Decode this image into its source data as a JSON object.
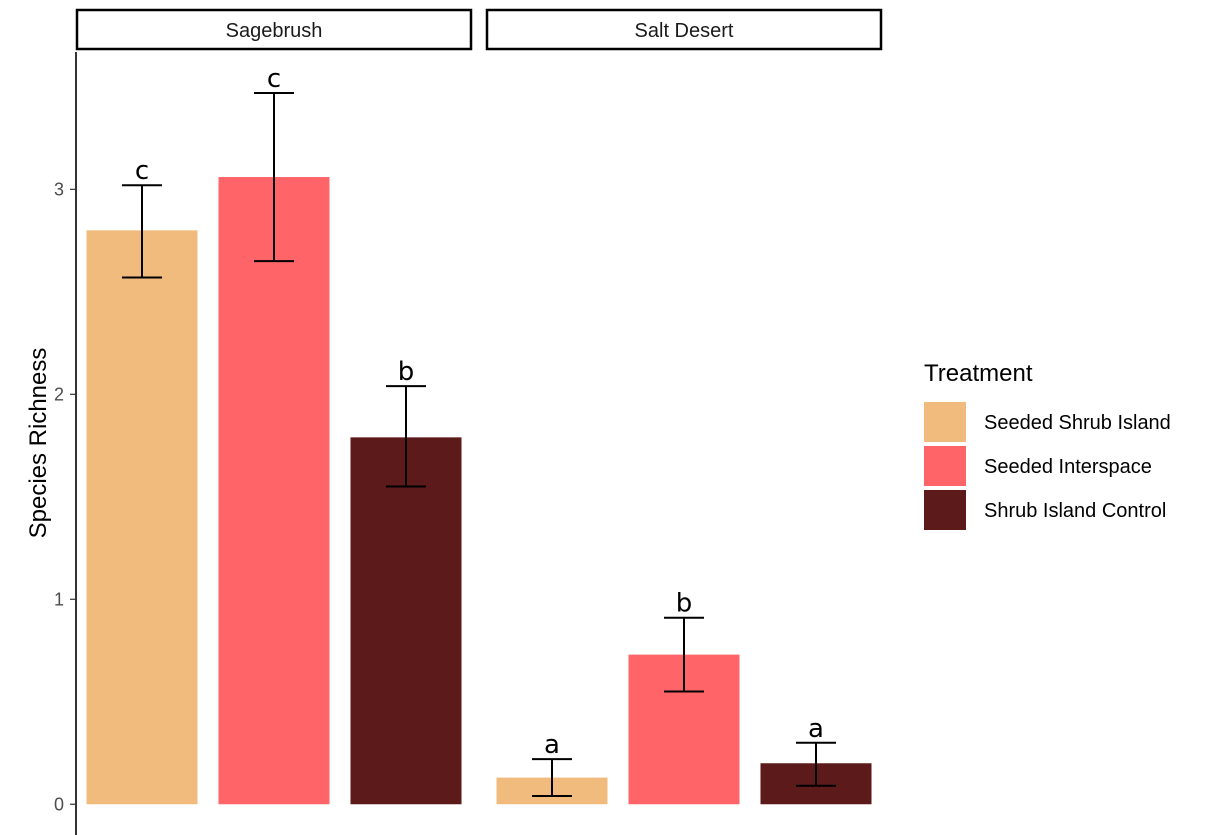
{
  "chart_data": {
    "type": "bar",
    "facets": [
      "Sagebrush",
      "Salt Desert"
    ],
    "categories": [
      "Seeded Shrub Island",
      "Seeded Interspace",
      "Shrub Island Control"
    ],
    "series": [
      {
        "facet": "Sagebrush",
        "values": [
          2.8,
          3.06,
          1.79
        ],
        "error_low": [
          2.57,
          2.65,
          1.55
        ],
        "error_high": [
          3.02,
          3.47,
          2.04
        ],
        "labels": [
          "c",
          "c",
          "b"
        ]
      },
      {
        "facet": "Salt Desert",
        "values": [
          0.13,
          0.73,
          0.2
        ],
        "error_low": [
          0.04,
          0.55,
          0.09
        ],
        "error_high": [
          0.22,
          0.91,
          0.3
        ],
        "labels": [
          "a",
          "b",
          "a"
        ]
      }
    ],
    "ylabel": "Species Richness",
    "xlabel": "",
    "ylim": [
      -0.15,
      3.67
    ],
    "yticks": [
      0,
      1,
      2,
      3
    ],
    "grid": false,
    "legend": {
      "title": "Treatment",
      "placement": "right",
      "entries": [
        "Seeded Shrub Island",
        "Seeded Interspace",
        "Shrub Island Control"
      ]
    },
    "colors": [
      "#f0bb7c",
      "#ff6469",
      "#5c1a1a"
    ]
  }
}
